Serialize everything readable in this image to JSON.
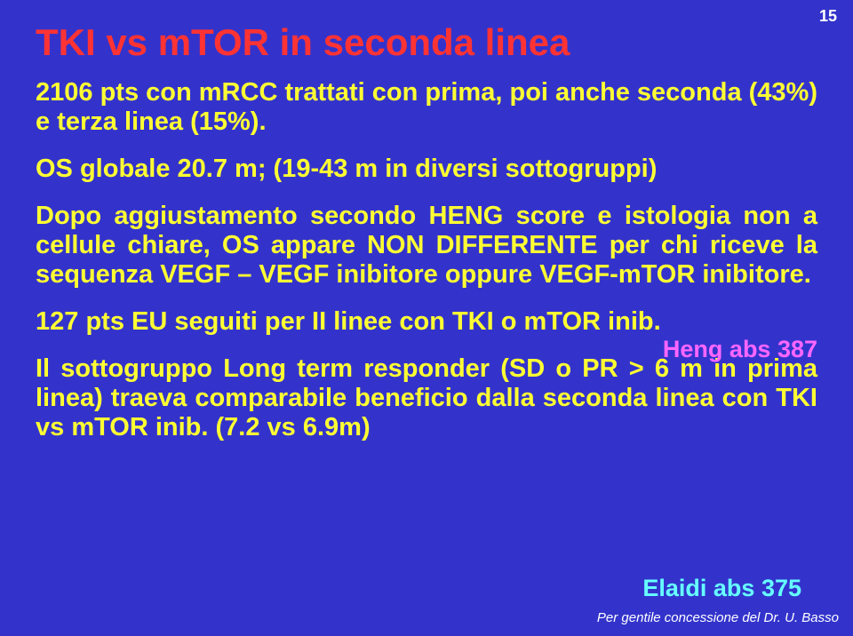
{
  "page": {
    "number": "15",
    "background_color": "#3333cc"
  },
  "title": {
    "text": "TKI vs mTOR in seconda linea",
    "color": "#ff3333",
    "font_size": 42,
    "font_weight": "bold"
  },
  "body": {
    "color": "#ffff33",
    "font_size": 29,
    "font_weight": "bold",
    "line1": "2106 pts con mRCC trattati con prima, poi anche seconda (43%) e terza linea (15%).",
    "line2": "OS globale 20.7 m; (19-43 m in diversi sottogruppi)",
    "line3": "Dopo aggiustamento secondo HENG score e istologia non a cellule chiare, OS appare NON DIFFERENTE per chi riceve la sequenza VEGF – VEGF inibitore oppure VEGF-mTOR inibitore.",
    "line4": "127 pts EU seguiti per II linee con TKI o mTOR inib.",
    "line5": "Il sottogruppo Long term responder (SD o PR > 6 m in prima linea) traeva comparabile beneficio dalla seconda linea con TKI vs mTOR inib. (7.2 vs 6.9m)"
  },
  "refs": {
    "heng": {
      "text": "Heng abs 387",
      "color": "#ff66ff",
      "font_size": 27
    },
    "elaidi": {
      "text": "Elaidi abs 375",
      "color": "#66ffff",
      "font_size": 27
    }
  },
  "footer": {
    "text": "Per gentile concessione del Dr. U. Basso",
    "color": "#ffffff",
    "font_size": 15,
    "font_style": "italic"
  }
}
